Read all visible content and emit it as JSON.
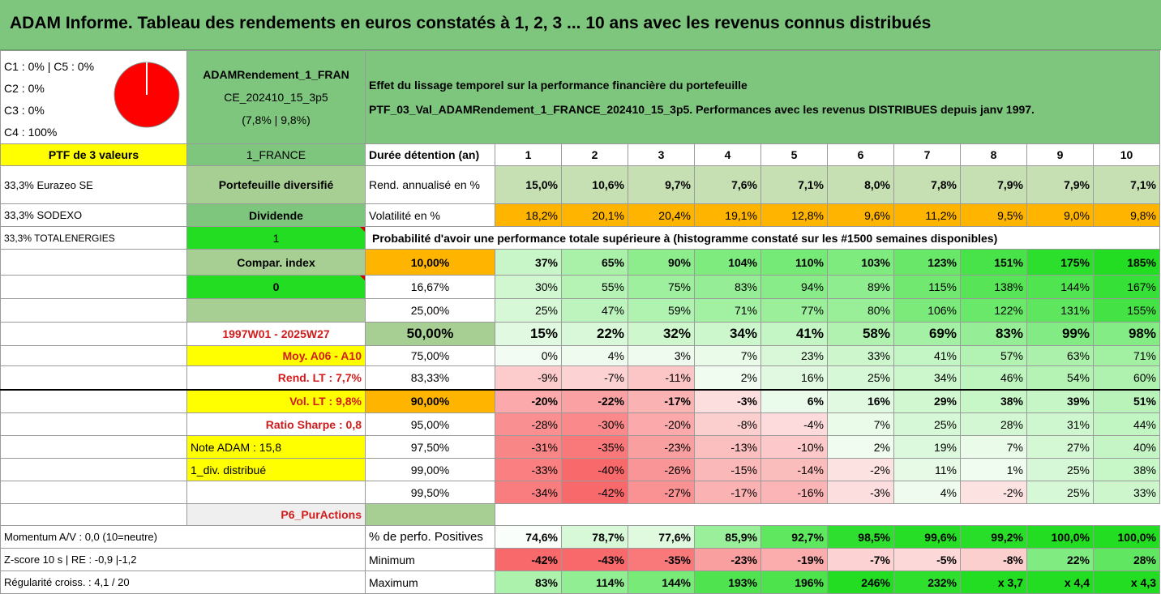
{
  "title": "ADAM Informe. Tableau des rendements en euros constatés à 1, 2, 3 ... 10 ans avec les revenus connus distribués",
  "composition": [
    "C1 : 0% | C5 : 0%",
    "C2 : 0%",
    "C3 : 0%",
    "C4 : 100%"
  ],
  "pie": {
    "slice_pct": 100,
    "color": "#ff0000"
  },
  "portfolio": {
    "name_line1": "ADAMRendement_1_FRAN",
    "name_line2": "CE_202410_15_3p5",
    "name_line3": "(7,8% | 9,8%)",
    "description_line1": "Effet du lissage temporel sur la performance financière du portefeuille",
    "description_line2": "PTF_03_Val_ADAMRendement_1_FRANCE_202410_15_3p5. Performances avec les revenus DISTRIBUES depuis janv 1997.",
    "ptf_label": "PTF de 3 valeurs",
    "code": "1_FRANCE",
    "holdings": [
      "33,3% Eurazeo SE",
      "33,3% SODEXO",
      "33,3% TOTALENERGIES"
    ],
    "type": "Portefeuille diversifié",
    "dividend_label": "Dividende",
    "dividend_value": "1",
    "compar_label": "Compar. index",
    "compar_value": "0",
    "period": "1997W01 - 2025W27",
    "moy": "Moy. A06 - A10",
    "rend_lt": "Rend. LT : 7,7%",
    "vol_lt": "Vol. LT : 9,8%",
    "sharpe": "Ratio Sharpe : 0,8",
    "note": "Note ADAM : 15,8",
    "div_distrib": "1_div. distribué",
    "purchase": "P6_PurActions",
    "momentum": "Momentum A/V : 0,0 (10=neutre)",
    "zscore": "Z-score 10 s | RE : -0,9 |-1,2",
    "regularite": "Régularité croiss. : 4,1 / 20"
  },
  "header": {
    "label": "Durée détention (an)",
    "years": [
      "1",
      "2",
      "3",
      "4",
      "5",
      "6",
      "7",
      "8",
      "9",
      "10"
    ]
  },
  "rend": {
    "label": "Rend. annualisé en %",
    "values": [
      "15,0%",
      "10,6%",
      "9,7%",
      "7,6%",
      "7,1%",
      "8,0%",
      "7,8%",
      "7,9%",
      "7,9%",
      "7,1%"
    ]
  },
  "vol": {
    "label": "Volatilité en %",
    "values": [
      "18,2%",
      "20,1%",
      "20,4%",
      "19,1%",
      "12,8%",
      "9,6%",
      "11,2%",
      "9,5%",
      "9,0%",
      "9,8%"
    ]
  },
  "prob_title": "Probabilité d'avoir une performance totale supérieure à (histogramme constaté sur les #1500 semaines disponibles)",
  "quantiles": [
    {
      "p": "10,00%",
      "values": [
        "37%",
        "65%",
        "90%",
        "104%",
        "110%",
        "103%",
        "123%",
        "151%",
        "175%",
        "185%"
      ]
    },
    {
      "p": "16,67%",
      "values": [
        "30%",
        "55%",
        "75%",
        "83%",
        "94%",
        "89%",
        "115%",
        "138%",
        "144%",
        "167%"
      ]
    },
    {
      "p": "25,00%",
      "values": [
        "25%",
        "47%",
        "59%",
        "71%",
        "77%",
        "80%",
        "106%",
        "122%",
        "131%",
        "155%"
      ]
    },
    {
      "p": "50,00%",
      "values": [
        "15%",
        "22%",
        "32%",
        "34%",
        "41%",
        "58%",
        "69%",
        "83%",
        "99%",
        "98%"
      ]
    },
    {
      "p": "75,00%",
      "values": [
        "0%",
        "4%",
        "3%",
        "7%",
        "23%",
        "33%",
        "41%",
        "57%",
        "63%",
        "71%"
      ]
    },
    {
      "p": "83,33%",
      "values": [
        "-9%",
        "-7%",
        "-11%",
        "2%",
        "16%",
        "25%",
        "34%",
        "46%",
        "54%",
        "60%"
      ]
    },
    {
      "p": "90,00%",
      "values": [
        "-20%",
        "-22%",
        "-17%",
        "-3%",
        "6%",
        "16%",
        "29%",
        "38%",
        "39%",
        "51%"
      ]
    },
    {
      "p": "95,00%",
      "values": [
        "-28%",
        "-30%",
        "-20%",
        "-8%",
        "-4%",
        "7%",
        "25%",
        "28%",
        "31%",
        "44%"
      ]
    },
    {
      "p": "97,50%",
      "values": [
        "-31%",
        "-35%",
        "-23%",
        "-13%",
        "-10%",
        "2%",
        "19%",
        "7%",
        "27%",
        "40%"
      ]
    },
    {
      "p": "99,00%",
      "values": [
        "-33%",
        "-40%",
        "-26%",
        "-15%",
        "-14%",
        "-2%",
        "11%",
        "1%",
        "25%",
        "38%"
      ]
    },
    {
      "p": "99,50%",
      "values": [
        "-34%",
        "-42%",
        "-27%",
        "-17%",
        "-16%",
        "-3%",
        "4%",
        "-2%",
        "25%",
        "33%"
      ]
    }
  ],
  "positives": {
    "label": "% de perfo. Positives",
    "values": [
      "74,6%",
      "78,7%",
      "77,6%",
      "85,9%",
      "92,7%",
      "98,5%",
      "99,6%",
      "99,2%",
      "100,0%",
      "100,0%"
    ]
  },
  "minimum": {
    "label": "Minimum",
    "values": [
      "-42%",
      "-43%",
      "-35%",
      "-23%",
      "-19%",
      "-7%",
      "-5%",
      "-8%",
      "22%",
      "28%"
    ]
  },
  "maximum": {
    "label": "Maximum",
    "values": [
      "83%",
      "114%",
      "144%",
      "193%",
      "196%",
      "246%",
      "232%",
      "x 3,7",
      "x 4,4",
      "x 4,3"
    ]
  },
  "colors": {
    "title_bg": "#7ec67e",
    "yellow": "#ffff00",
    "orange": "#ffb400",
    "bright_green": "#22dd22",
    "sage": "#a8cf93",
    "gray": "#b9b9b9",
    "red_text": "#d21c1c",
    "red_scale": "#f8696b",
    "green_scale": "#22dd22"
  }
}
